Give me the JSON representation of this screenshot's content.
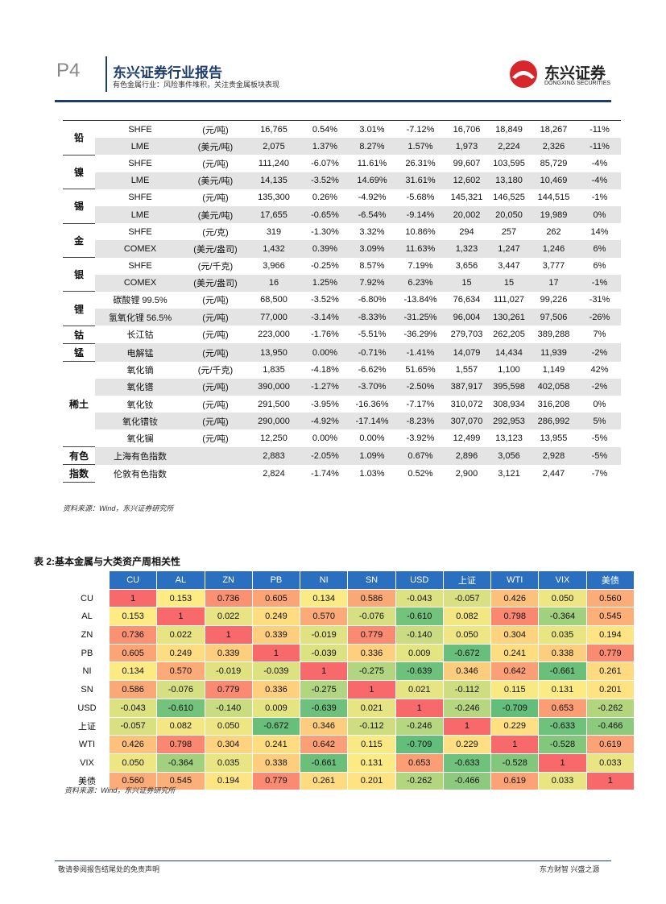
{
  "header": {
    "page": "P4",
    "title": "东兴证券行业报告",
    "subtitle": "有色金属行业：风险事件堆积，关注贵金属板块表现",
    "logo": "东兴证券",
    "logo_en": "DONGXING SECURITIES"
  },
  "table1": {
    "groups": [
      {
        "label": "铅",
        "rows": [
          [
            "SHFE",
            "(元/吨)",
            "16,765",
            "0.54%",
            "3.01%",
            "-7.12%",
            "16,706",
            "18,849",
            "18,267",
            "-11%"
          ],
          [
            "LME",
            "(美元/吨)",
            "2,075",
            "1.37%",
            "8.27%",
            "1.57%",
            "1,973",
            "2,224",
            "2,326",
            "-11%"
          ]
        ]
      },
      {
        "label": "镍",
        "rows": [
          [
            "SHFE",
            "(元/吨)",
            "111,240",
            "-6.07%",
            "11.61%",
            "26.31%",
            "99,607",
            "103,595",
            "85,729",
            "-4%"
          ],
          [
            "LME",
            "(美元/吨)",
            "14,135",
            "-3.52%",
            "14.69%",
            "31.61%",
            "12,602",
            "13,180",
            "10,469",
            "-4%"
          ]
        ]
      },
      {
        "label": "锡",
        "rows": [
          [
            "SHFE",
            "(元/吨)",
            "135,300",
            "0.26%",
            "-4.92%",
            "-5.68%",
            "145,321",
            "146,525",
            "144,515",
            "-1%"
          ],
          [
            "LME",
            "(美元/吨)",
            "17,655",
            "-0.65%",
            "-6.54%",
            "-9.14%",
            "20,002",
            "20,050",
            "19,989",
            "0%"
          ]
        ]
      },
      {
        "label": "金",
        "rows": [
          [
            "SHFE",
            "(元/克)",
            "319",
            "-1.30%",
            "3.32%",
            "10.86%",
            "294",
            "257",
            "262",
            "14%"
          ],
          [
            "COMEX",
            "(美元/盎司)",
            "1,432",
            "0.39%",
            "3.09%",
            "11.63%",
            "1,323",
            "1,247",
            "1,246",
            "6%"
          ]
        ]
      },
      {
        "label": "银",
        "rows": [
          [
            "SHFE",
            "(元/千克)",
            "3,966",
            "-0.25%",
            "8.57%",
            "7.19%",
            "3,656",
            "3,447",
            "3,777",
            "6%"
          ],
          [
            "COMEX",
            "(美元/盎司)",
            "16",
            "1.25%",
            "7.92%",
            "6.23%",
            "15",
            "15",
            "17",
            "-1%"
          ]
        ]
      },
      {
        "label": "锂",
        "rows": [
          [
            "碳酸锂 99.5%",
            "(元/吨)",
            "68,500",
            "-3.52%",
            "-6.80%",
            "-13.84%",
            "76,634",
            "111,027",
            "99,226",
            "-31%"
          ],
          [
            "氢氧化锂 56.5%",
            "(元/吨)",
            "77,000",
            "-3.14%",
            "-8.33%",
            "-31.25%",
            "96,004",
            "130,261",
            "97,506",
            "-26%"
          ]
        ]
      },
      {
        "label": "钴",
        "rows": [
          [
            "长江钴",
            "(元/吨)",
            "223,000",
            "-1.76%",
            "-5.51%",
            "-36.29%",
            "279,703",
            "262,205",
            "389,288",
            "7%"
          ]
        ]
      },
      {
        "label": "锰",
        "rows": [
          [
            "电解锰",
            "(元/吨)",
            "13,950",
            "0.00%",
            "-0.71%",
            "-1.41%",
            "14,079",
            "14,434",
            "11,939",
            "-2%"
          ]
        ]
      },
      {
        "label": "稀土",
        "rows": [
          [
            "氧化镝",
            "(元/千克)",
            "1,835",
            "-4.18%",
            "-6.62%",
            "51.65%",
            "1,557",
            "1,100",
            "1,149",
            "42%"
          ],
          [
            "氧化镨",
            "(元/吨)",
            "390,000",
            "-1.27%",
            "-3.70%",
            "-2.50%",
            "387,917",
            "395,598",
            "402,058",
            "-2%"
          ],
          [
            "氧化钕",
            "(元/吨)",
            "291,500",
            "-3.95%",
            "-16.36%",
            "-7.17%",
            "310,072",
            "308,934",
            "316,208",
            "0%"
          ],
          [
            "氧化镨钕",
            "(元/吨)",
            "290,000",
            "-4.92%",
            "-17.14%",
            "-8.23%",
            "307,070",
            "292,953",
            "286,992",
            "5%"
          ],
          [
            "氧化镧",
            "(元/吨)",
            "12,250",
            "0.00%",
            "0.00%",
            "-3.92%",
            "12,499",
            "13,123",
            "13,955",
            "-5%"
          ]
        ]
      },
      {
        "label": "有色",
        "rows": [
          [
            "上海有色指数",
            null,
            "2,883",
            "-2.05%",
            "1.09%",
            "0.67%",
            "2,896",
            "3,056",
            "2,928",
            "-5%"
          ]
        ]
      },
      {
        "label": "指数",
        "rows": [
          [
            "伦敦有色指数",
            null,
            "2,824",
            "-1.74%",
            "1.03%",
            "0.52%",
            "2,900",
            "3,121",
            "2,447",
            "-7%"
          ]
        ]
      }
    ],
    "source": "资料来源：Wind，东兴证券研究所"
  },
  "table2": {
    "title": "表 2:基本金属与大类资产周相关性",
    "columns": [
      "CU",
      "AL",
      "ZN",
      "PB",
      "NI",
      "SN",
      "USD",
      "上证",
      "WTI",
      "VIX",
      "美债"
    ],
    "rows": [
      {
        "label": "CU",
        "values": [
          "1",
          "0.153",
          "0.736",
          "0.605",
          "0.134",
          "0.586",
          "-0.043",
          "-0.057",
          "0.426",
          "0.050",
          "0.560"
        ]
      },
      {
        "label": "AL",
        "values": [
          "0.153",
          "1",
          "0.022",
          "0.249",
          "0.570",
          "-0.076",
          "-0.610",
          "0.082",
          "0.798",
          "-0.364",
          "0.545"
        ]
      },
      {
        "label": "ZN",
        "values": [
          "0.736",
          "0.022",
          "1",
          "0.339",
          "-0.019",
          "0.779",
          "-0.140",
          "0.050",
          "0.304",
          "0.035",
          "0.194"
        ]
      },
      {
        "label": "PB",
        "values": [
          "0.605",
          "0.249",
          "0.339",
          "1",
          "-0.039",
          "0.336",
          "0.009",
          "-0.672",
          "0.241",
          "0.338",
          "0.779"
        ]
      },
      {
        "label": "NI",
        "values": [
          "0.134",
          "0.570",
          "-0.019",
          "-0.039",
          "1",
          "-0.275",
          "-0.639",
          "0.346",
          "0.642",
          "-0.661",
          "0.261"
        ]
      },
      {
        "label": "SN",
        "values": [
          "0.586",
          "-0.076",
          "0.779",
          "0.336",
          "-0.275",
          "1",
          "0.021",
          "-0.112",
          "0.115",
          "0.131",
          "0.201"
        ]
      },
      {
        "label": "USD",
        "values": [
          "-0.043",
          "-0.610",
          "-0.140",
          "0.009",
          "-0.639",
          "0.021",
          "1",
          "-0.246",
          "-0.709",
          "0.653",
          "-0.262"
        ]
      },
      {
        "label": "上证",
        "values": [
          "-0.057",
          "0.082",
          "0.050",
          "-0.672",
          "0.346",
          "-0.112",
          "-0.246",
          "1",
          "0.229",
          "-0.633",
          "-0.466"
        ]
      },
      {
        "label": "WTI",
        "values": [
          "0.426",
          "0.798",
          "0.304",
          "0.241",
          "0.642",
          "0.115",
          "-0.709",
          "0.229",
          "1",
          "-0.528",
          "0.619"
        ]
      },
      {
        "label": "VIX",
        "values": [
          "0.050",
          "-0.364",
          "0.035",
          "0.338",
          "-0.661",
          "0.131",
          "0.653",
          "-0.633",
          "-0.528",
          "1",
          "0.033"
        ]
      },
      {
        "label": "美债",
        "values": [
          "0.560",
          "0.545",
          "0.194",
          "0.779",
          "0.261",
          "0.201",
          "-0.262",
          "-0.466",
          "0.619",
          "0.033",
          "1"
        ]
      }
    ],
    "source": "资料来源：Wind，东兴证券研究所"
  },
  "footer": {
    "left": "敬请参阅报告结尾处的免责声明",
    "right": "东方财智 兴盛之源"
  }
}
